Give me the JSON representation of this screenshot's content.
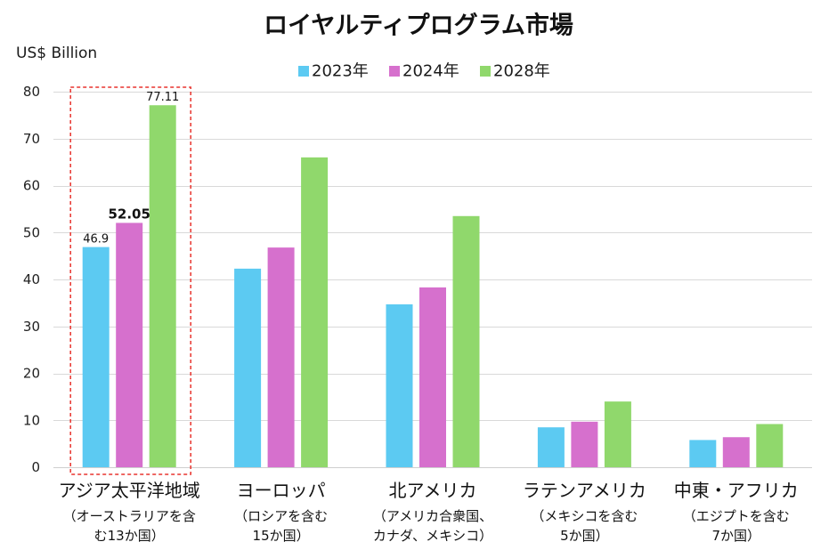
{
  "chart_data": {
    "type": "bar",
    "title": "ロイヤルティプログラム市場",
    "xlabel": "",
    "ylabel": "US$ Billion",
    "ylim": [
      0,
      80
    ],
    "yticks": [
      0,
      10,
      20,
      30,
      40,
      50,
      60,
      70,
      80
    ],
    "grid": true,
    "legend": "top-center",
    "categories": [
      "アジア太平洋地域",
      "ヨーロッパ",
      "北アメリカ",
      "ラテンアメリカ",
      "中東・アフリカ"
    ],
    "category_notes": [
      [
        "（オーストラリアを含",
        "む13か国）"
      ],
      [
        "（ロシアを含む",
        "15か国）"
      ],
      [
        "（アメリカ合衆国、",
        "カナダ、メキシコ）"
      ],
      [
        "（メキシコを含む",
        "5か国）"
      ],
      [
        "（エジプトを含む",
        "7か国）"
      ]
    ],
    "series": [
      {
        "name": "2023年",
        "color": "#5CCAF2",
        "values": [
          46.9,
          42.3,
          34.7,
          8.5,
          5.8
        ]
      },
      {
        "name": "2024年",
        "color": "#D670CD",
        "values": [
          52.05,
          46.8,
          38.3,
          9.7,
          6.4
        ]
      },
      {
        "name": "2028年",
        "color": "#90D86C",
        "values": [
          77.11,
          66.0,
          53.5,
          14.0,
          9.2
        ]
      }
    ],
    "data_labels": [
      {
        "series": 0,
        "category": 0,
        "text": "46.9",
        "emphasized": false
      },
      {
        "series": 1,
        "category": 0,
        "text": "52.05",
        "emphasized": true
      },
      {
        "series": 2,
        "category": 0,
        "text": "77.11",
        "emphasized": false
      }
    ],
    "highlighted_category": 0,
    "highlight_color": "#E8342E"
  }
}
